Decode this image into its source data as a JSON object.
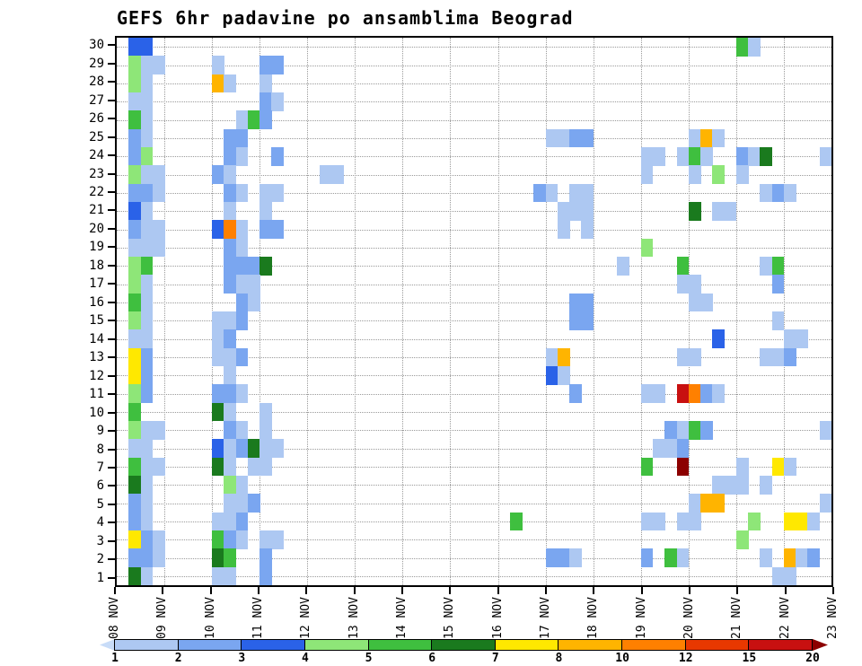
{
  "chart_data": {
    "type": "heatmap",
    "title": "GEFS 6hr padavine po ansamblima Beograd",
    "xlabel": "",
    "ylabel": "",
    "x_tick_labels": [
      "08 NOV",
      "09 NOV",
      "10 NOV",
      "11 NOV",
      "12 NOV",
      "13 NOV",
      "14 NOV",
      "15 NOV",
      "16 NOV",
      "17 NOV",
      "18 NOV",
      "19 NOV",
      "20 NOV",
      "21 NOV",
      "22 NOV",
      "23 NOV"
    ],
    "y_tick_labels": [
      "30",
      "29",
      "28",
      "27",
      "26",
      "25",
      "24",
      "23",
      "22",
      "21",
      "20",
      "19",
      "18",
      "17",
      "16",
      "15",
      "14",
      "13",
      "12",
      "11",
      "10",
      "9",
      "8",
      "7",
      "6",
      "5",
      "4",
      "3",
      "2",
      "1"
    ],
    "n_rows": 30,
    "steps_per_day": 4,
    "grid": true,
    "legend_position": "bottom",
    "value_levels": [
      1,
      2,
      3,
      4,
      5,
      6,
      7,
      8,
      10,
      12,
      15,
      20
    ],
    "level_colors": {
      "1": "#adc8f2",
      "2": "#7aa6f0",
      "3": "#2a62e8",
      "4": "#8ee678",
      "5": "#3fbf3f",
      "6": "#1a7a1e",
      "7": "#ffe800",
      "8": "#ffb400",
      "10": "#ff8000",
      "12": "#e83800",
      "15": "#c81010",
      "20": "#8c0000"
    },
    "legend": {
      "labels": [
        "1",
        "2",
        "3",
        "4",
        "5",
        "6",
        "7",
        "8",
        "10",
        "12",
        "15",
        "20"
      ],
      "bar_colors": [
        "#c8dcf8",
        "#adc8f2",
        "#7aa6f0",
        "#2a62e8",
        "#8ee678",
        "#3fbf3f",
        "#1a7a1e",
        "#ffe800",
        "#ffb400",
        "#ff8000",
        "#e83800",
        "#c81010",
        "#8c0000"
      ]
    },
    "cells": [
      [
        30,
        1,
        3
      ],
      [
        30,
        2,
        3
      ],
      [
        30,
        52,
        5
      ],
      [
        30,
        53,
        1
      ],
      [
        29,
        1,
        4
      ],
      [
        29,
        2,
        1
      ],
      [
        29,
        3,
        1
      ],
      [
        29,
        8,
        1
      ],
      [
        29,
        12,
        2
      ],
      [
        29,
        13,
        2
      ],
      [
        28,
        1,
        4
      ],
      [
        28,
        2,
        1
      ],
      [
        28,
        8,
        8
      ],
      [
        28,
        9,
        1
      ],
      [
        28,
        12,
        1
      ],
      [
        27,
        1,
        1
      ],
      [
        27,
        2,
        1
      ],
      [
        27,
        12,
        2
      ],
      [
        27,
        13,
        1
      ],
      [
        26,
        1,
        5
      ],
      [
        26,
        2,
        1
      ],
      [
        26,
        10,
        1
      ],
      [
        26,
        11,
        5
      ],
      [
        26,
        12,
        2
      ],
      [
        25,
        1,
        2
      ],
      [
        25,
        2,
        1
      ],
      [
        25,
        9,
        2
      ],
      [
        25,
        10,
        2
      ],
      [
        25,
        36,
        1
      ],
      [
        25,
        37,
        1
      ],
      [
        25,
        38,
        2
      ],
      [
        25,
        39,
        2
      ],
      [
        25,
        48,
        1
      ],
      [
        25,
        49,
        8
      ],
      [
        25,
        50,
        1
      ],
      [
        24,
        1,
        2
      ],
      [
        24,
        2,
        4
      ],
      [
        24,
        9,
        2
      ],
      [
        24,
        10,
        1
      ],
      [
        24,
        13,
        2
      ],
      [
        24,
        44,
        1
      ],
      [
        24,
        45,
        1
      ],
      [
        24,
        47,
        1
      ],
      [
        24,
        48,
        5
      ],
      [
        24,
        49,
        1
      ],
      [
        24,
        52,
        2
      ],
      [
        24,
        53,
        1
      ],
      [
        24,
        54,
        6
      ],
      [
        24,
        59,
        1
      ],
      [
        23,
        1,
        4
      ],
      [
        23,
        2,
        1
      ],
      [
        23,
        3,
        1
      ],
      [
        23,
        8,
        2
      ],
      [
        23,
        9,
        1
      ],
      [
        23,
        17,
        1
      ],
      [
        23,
        18,
        1
      ],
      [
        23,
        44,
        1
      ],
      [
        23,
        48,
        1
      ],
      [
        23,
        50,
        4
      ],
      [
        23,
        52,
        1
      ],
      [
        22,
        1,
        2
      ],
      [
        22,
        2,
        2
      ],
      [
        22,
        3,
        1
      ],
      [
        22,
        9,
        2
      ],
      [
        22,
        10,
        1
      ],
      [
        22,
        12,
        1
      ],
      [
        22,
        13,
        1
      ],
      [
        22,
        35,
        2
      ],
      [
        22,
        36,
        1
      ],
      [
        22,
        38,
        1
      ],
      [
        22,
        39,
        1
      ],
      [
        22,
        54,
        1
      ],
      [
        22,
        55,
        2
      ],
      [
        22,
        56,
        1
      ],
      [
        21,
        1,
        3
      ],
      [
        21,
        2,
        1
      ],
      [
        21,
        9,
        1
      ],
      [
        21,
        12,
        1
      ],
      [
        21,
        37,
        1
      ],
      [
        21,
        38,
        1
      ],
      [
        21,
        39,
        1
      ],
      [
        21,
        48,
        6
      ],
      [
        21,
        50,
        1
      ],
      [
        21,
        51,
        1
      ],
      [
        20,
        1,
        2
      ],
      [
        20,
        2,
        1
      ],
      [
        20,
        3,
        1
      ],
      [
        20,
        8,
        3
      ],
      [
        20,
        9,
        10
      ],
      [
        20,
        10,
        1
      ],
      [
        20,
        12,
        2
      ],
      [
        20,
        13,
        2
      ],
      [
        20,
        37,
        1
      ],
      [
        20,
        39,
        1
      ],
      [
        19,
        1,
        1
      ],
      [
        19,
        2,
        1
      ],
      [
        19,
        3,
        1
      ],
      [
        19,
        9,
        2
      ],
      [
        19,
        10,
        1
      ],
      [
        19,
        44,
        4
      ],
      [
        18,
        1,
        4
      ],
      [
        18,
        2,
        5
      ],
      [
        18,
        9,
        2
      ],
      [
        18,
        10,
        2
      ],
      [
        18,
        11,
        2
      ],
      [
        18,
        12,
        6
      ],
      [
        18,
        42,
        1
      ],
      [
        18,
        47,
        5
      ],
      [
        18,
        54,
        1
      ],
      [
        18,
        55,
        5
      ],
      [
        17,
        1,
        4
      ],
      [
        17,
        2,
        1
      ],
      [
        17,
        9,
        2
      ],
      [
        17,
        10,
        1
      ],
      [
        17,
        11,
        1
      ],
      [
        17,
        47,
        1
      ],
      [
        17,
        48,
        1
      ],
      [
        17,
        55,
        2
      ],
      [
        16,
        1,
        5
      ],
      [
        16,
        2,
        1
      ],
      [
        16,
        10,
        2
      ],
      [
        16,
        11,
        1
      ],
      [
        16,
        38,
        2
      ],
      [
        16,
        39,
        2
      ],
      [
        16,
        48,
        1
      ],
      [
        16,
        49,
        1
      ],
      [
        15,
        1,
        4
      ],
      [
        15,
        2,
        1
      ],
      [
        15,
        8,
        1
      ],
      [
        15,
        9,
        1
      ],
      [
        15,
        10,
        2
      ],
      [
        15,
        38,
        2
      ],
      [
        15,
        39,
        2
      ],
      [
        15,
        55,
        1
      ],
      [
        14,
        1,
        1
      ],
      [
        14,
        2,
        1
      ],
      [
        14,
        8,
        1
      ],
      [
        14,
        9,
        2
      ],
      [
        14,
        50,
        3
      ],
      [
        14,
        56,
        1
      ],
      [
        14,
        57,
        1
      ],
      [
        13,
        1,
        7
      ],
      [
        13,
        2,
        2
      ],
      [
        13,
        8,
        1
      ],
      [
        13,
        9,
        1
      ],
      [
        13,
        10,
        2
      ],
      [
        13,
        36,
        1
      ],
      [
        13,
        37,
        8
      ],
      [
        13,
        47,
        1
      ],
      [
        13,
        48,
        1
      ],
      [
        13,
        54,
        1
      ],
      [
        13,
        55,
        1
      ],
      [
        13,
        56,
        2
      ],
      [
        12,
        1,
        7
      ],
      [
        12,
        2,
        2
      ],
      [
        12,
        9,
        1
      ],
      [
        12,
        36,
        3
      ],
      [
        12,
        37,
        1
      ],
      [
        11,
        1,
        4
      ],
      [
        11,
        2,
        2
      ],
      [
        11,
        8,
        2
      ],
      [
        11,
        9,
        2
      ],
      [
        11,
        10,
        1
      ],
      [
        11,
        38,
        2
      ],
      [
        11,
        44,
        1
      ],
      [
        11,
        45,
        1
      ],
      [
        11,
        47,
        15
      ],
      [
        11,
        48,
        10
      ],
      [
        11,
        49,
        2
      ],
      [
        11,
        50,
        1
      ],
      [
        10,
        1,
        5
      ],
      [
        10,
        8,
        6
      ],
      [
        10,
        9,
        1
      ],
      [
        10,
        12,
        1
      ],
      [
        9,
        1,
        4
      ],
      [
        9,
        2,
        1
      ],
      [
        9,
        3,
        1
      ],
      [
        9,
        9,
        2
      ],
      [
        9,
        10,
        1
      ],
      [
        9,
        12,
        1
      ],
      [
        9,
        46,
        2
      ],
      [
        9,
        47,
        1
      ],
      [
        9,
        48,
        5
      ],
      [
        9,
        49,
        2
      ],
      [
        9,
        59,
        1
      ],
      [
        8,
        1,
        1
      ],
      [
        8,
        2,
        1
      ],
      [
        8,
        8,
        3
      ],
      [
        8,
        9,
        1
      ],
      [
        8,
        10,
        2
      ],
      [
        8,
        11,
        6
      ],
      [
        8,
        12,
        1
      ],
      [
        8,
        13,
        1
      ],
      [
        8,
        45,
        1
      ],
      [
        8,
        46,
        1
      ],
      [
        8,
        47,
        2
      ],
      [
        7,
        1,
        5
      ],
      [
        7,
        2,
        1
      ],
      [
        7,
        3,
        1
      ],
      [
        7,
        8,
        6
      ],
      [
        7,
        9,
        1
      ],
      [
        7,
        11,
        1
      ],
      [
        7,
        12,
        1
      ],
      [
        7,
        44,
        5
      ],
      [
        7,
        47,
        20
      ],
      [
        7,
        52,
        1
      ],
      [
        7,
        55,
        7
      ],
      [
        7,
        56,
        1
      ],
      [
        6,
        1,
        6
      ],
      [
        6,
        2,
        1
      ],
      [
        6,
        9,
        4
      ],
      [
        6,
        10,
        1
      ],
      [
        6,
        50,
        1
      ],
      [
        6,
        51,
        1
      ],
      [
        6,
        52,
        1
      ],
      [
        6,
        54,
        1
      ],
      [
        5,
        1,
        2
      ],
      [
        5,
        2,
        1
      ],
      [
        5,
        9,
        1
      ],
      [
        5,
        10,
        1
      ],
      [
        5,
        11,
        2
      ],
      [
        5,
        48,
        1
      ],
      [
        5,
        49,
        8
      ],
      [
        5,
        50,
        8
      ],
      [
        5,
        59,
        1
      ],
      [
        4,
        1,
        2
      ],
      [
        4,
        2,
        1
      ],
      [
        4,
        8,
        1
      ],
      [
        4,
        9,
        1
      ],
      [
        4,
        10,
        2
      ],
      [
        4,
        33,
        5
      ],
      [
        4,
        44,
        1
      ],
      [
        4,
        45,
        1
      ],
      [
        4,
        47,
        1
      ],
      [
        4,
        48,
        1
      ],
      [
        4,
        53,
        4
      ],
      [
        4,
        56,
        7
      ],
      [
        4,
        57,
        7
      ],
      [
        4,
        58,
        1
      ],
      [
        3,
        1,
        7
      ],
      [
        3,
        2,
        2
      ],
      [
        3,
        3,
        1
      ],
      [
        3,
        8,
        5
      ],
      [
        3,
        9,
        2
      ],
      [
        3,
        10,
        1
      ],
      [
        3,
        12,
        1
      ],
      [
        3,
        13,
        1
      ],
      [
        3,
        52,
        4
      ],
      [
        2,
        1,
        2
      ],
      [
        2,
        2,
        2
      ],
      [
        2,
        3,
        1
      ],
      [
        2,
        8,
        6
      ],
      [
        2,
        9,
        5
      ],
      [
        2,
        12,
        2
      ],
      [
        2,
        36,
        2
      ],
      [
        2,
        37,
        2
      ],
      [
        2,
        38,
        1
      ],
      [
        2,
        44,
        2
      ],
      [
        2,
        46,
        5
      ],
      [
        2,
        47,
        1
      ],
      [
        2,
        54,
        1
      ],
      [
        2,
        56,
        8
      ],
      [
        2,
        57,
        1
      ],
      [
        2,
        58,
        2
      ],
      [
        1,
        1,
        6
      ],
      [
        1,
        2,
        1
      ],
      [
        1,
        8,
        1
      ],
      [
        1,
        9,
        1
      ],
      [
        1,
        12,
        2
      ],
      [
        1,
        55,
        1
      ],
      [
        1,
        56,
        1
      ]
    ]
  }
}
